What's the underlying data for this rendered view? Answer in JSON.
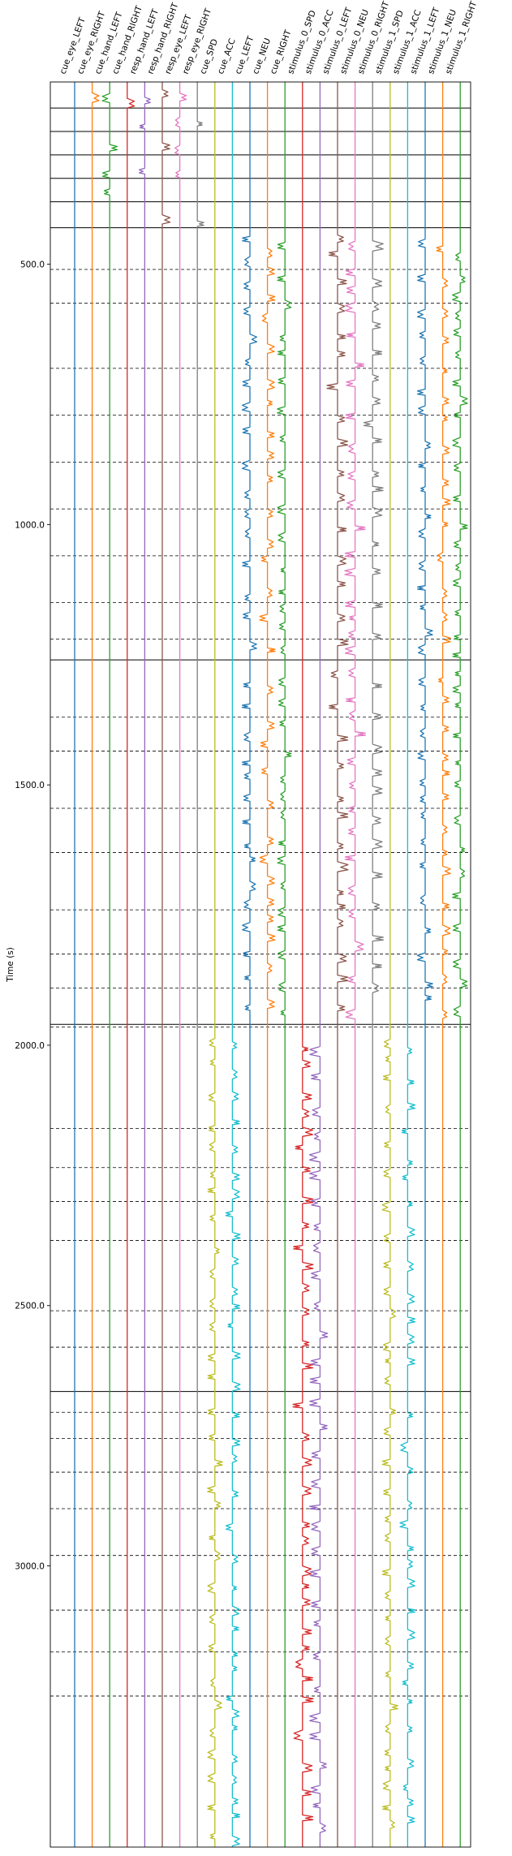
{
  "chart_data": {
    "type": "line",
    "title": "",
    "xlabel": "",
    "ylabel": "Time (s)",
    "y_inverted": true,
    "ylim": [
      3540,
      150
    ],
    "yticks": [
      500.0,
      1000.0,
      1500.0,
      2000.0,
      2500.0,
      3000.0
    ],
    "ytick_labels": [
      "500.0",
      "1000.0",
      "1500.0",
      "2000.0",
      "2500.0",
      "3000.0"
    ],
    "grid": false,
    "columns": [
      {
        "name": "cue_eye_LEFT",
        "color": "#1f77b4"
      },
      {
        "name": "cue_eye_RIGHT",
        "color": "#ff7f0e"
      },
      {
        "name": "cue_hand_LEFT",
        "color": "#2ca02c"
      },
      {
        "name": "cue_hand_RIGHT",
        "color": "#d62728"
      },
      {
        "name": "resp_hand_LEFT",
        "color": "#9467bd"
      },
      {
        "name": "resp_hand_RIGHT",
        "color": "#8c564b"
      },
      {
        "name": "resp_eye_LEFT",
        "color": "#e377c2"
      },
      {
        "name": "resp_eye_RIGHT",
        "color": "#7f7f7f"
      },
      {
        "name": "cue_SPD",
        "color": "#bcbd22"
      },
      {
        "name": "cue_ACC",
        "color": "#17becf"
      },
      {
        "name": "cue_LEFT",
        "color": "#1f77b4"
      },
      {
        "name": "cue_NEU",
        "color": "#ff7f0e"
      },
      {
        "name": "cue_RIGHT",
        "color": "#2ca02c"
      },
      {
        "name": "stimulus_0_SPD",
        "color": "#d62728"
      },
      {
        "name": "stimulus_0_ACC",
        "color": "#9467bd"
      },
      {
        "name": "stimulus_0_LEFT",
        "color": "#8c564b"
      },
      {
        "name": "stimulus_0_NEU",
        "color": "#e377c2"
      },
      {
        "name": "stimulus_0_RIGHT",
        "color": "#7f7f7f"
      },
      {
        "name": "stimulus_1_SPD",
        "color": "#bcbd22"
      },
      {
        "name": "stimulus_1_ACC",
        "color": "#17becf"
      },
      {
        "name": "stimulus_1_LEFT",
        "color": "#1f77b4"
      },
      {
        "name": "stimulus_1_NEU",
        "color": "#ff7f0e"
      },
      {
        "name": "stimulus_1_RIGHT",
        "color": "#2ca02c"
      }
    ],
    "run_boundaries_s": [
      150,
      200,
      245,
      290,
      335,
      380,
      430,
      1260,
      1960,
      2665,
      3540
    ],
    "block_boundaries_s": [
      510,
      575,
      700,
      790,
      880,
      970,
      1060,
      1150,
      1220,
      1370,
      1435,
      1545,
      1630,
      1740,
      1825,
      1890,
      1965,
      2160,
      2235,
      2300,
      2375,
      2510,
      2580,
      2705,
      2755,
      2820,
      2890,
      2980,
      3085,
      3165,
      3250
    ],
    "active_ranges_s": [
      {
        "cols": [
          0,
          1,
          2,
          3,
          4,
          5,
          6,
          7
        ],
        "segments": [
          [
            150,
            200
          ],
          [
            245,
            290
          ],
          [
            335,
            380
          ]
        ]
      },
      {
        "cols": [
          2,
          3,
          4,
          5,
          6,
          7
        ],
        "segments": [
          [
            200,
            245
          ],
          [
            290,
            335
          ],
          [
            380,
            430
          ]
        ]
      },
      {
        "cols": [
          10,
          11,
          12,
          15,
          16,
          17,
          20,
          21,
          22
        ],
        "segments": [
          [
            430,
            1260
          ],
          [
            1260,
            1960
          ]
        ]
      },
      {
        "cols": [
          8,
          9,
          13,
          14,
          18,
          19
        ],
        "segments": [
          [
            1960,
            2665
          ],
          [
            2665,
            3540
          ]
        ]
      }
    ]
  }
}
